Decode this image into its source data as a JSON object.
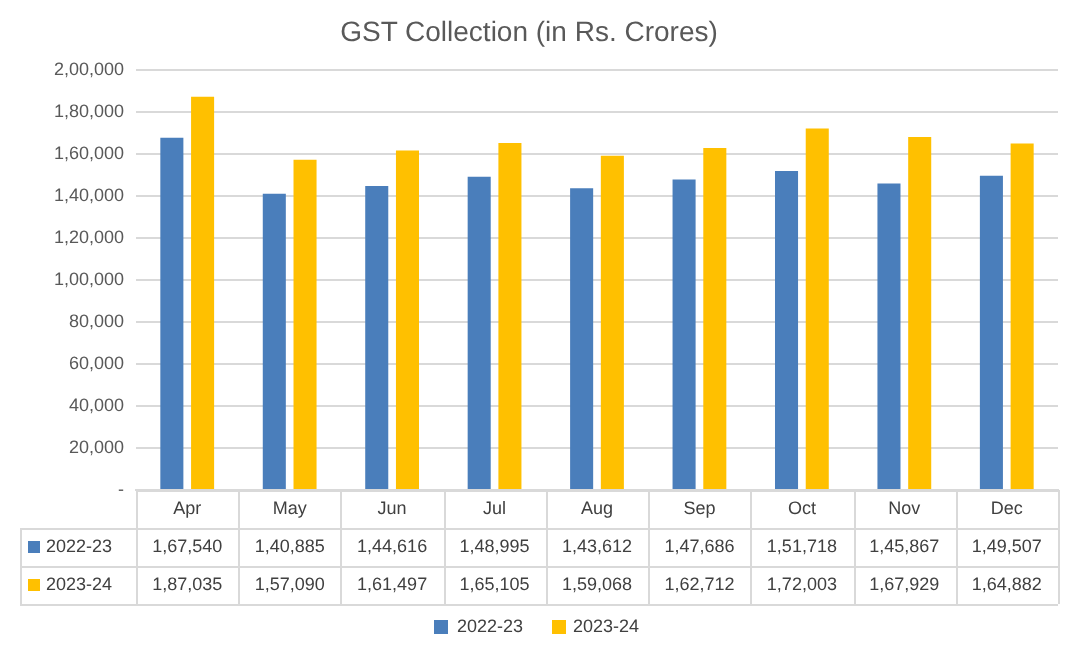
{
  "chart_data": {
    "type": "bar",
    "title": "GST Collection (in Rs. Crores)",
    "categories": [
      "Apr",
      "May",
      "Jun",
      "Jul",
      "Aug",
      "Sep",
      "Oct",
      "Nov",
      "Dec"
    ],
    "series": [
      {
        "name": "2022-23",
        "color": "#4a7ebb",
        "values": [
          167540,
          140885,
          144616,
          148995,
          143612,
          147686,
          151718,
          145867,
          149507
        ],
        "value_labels": [
          "1,67,540",
          "1,40,885",
          "1,44,616",
          "1,48,995",
          "1,43,612",
          "1,47,686",
          "1,51,718",
          "1,45,867",
          "1,49,507"
        ]
      },
      {
        "name": "2023-24",
        "color": "#ffc000",
        "values": [
          187035,
          157090,
          161497,
          165105,
          159068,
          162712,
          172003,
          167929,
          164882
        ],
        "value_labels": [
          "1,87,035",
          "1,57,090",
          "1,61,497",
          "1,65,105",
          "1,59,068",
          "1,62,712",
          "1,72,003",
          "1,67,929",
          "1,64,882"
        ]
      }
    ],
    "ylim": [
      0,
      200000
    ],
    "yticks": [
      {
        "value": 0,
        "label": "-"
      },
      {
        "value": 20000,
        "label": "20,000"
      },
      {
        "value": 40000,
        "label": "40,000"
      },
      {
        "value": 60000,
        "label": "60,000"
      },
      {
        "value": 80000,
        "label": "80,000"
      },
      {
        "value": 100000,
        "label": "1,00,000"
      },
      {
        "value": 120000,
        "label": "1,20,000"
      },
      {
        "value": 140000,
        "label": "1,40,000"
      },
      {
        "value": 160000,
        "label": "1,60,000"
      },
      {
        "value": 180000,
        "label": "1,80,000"
      },
      {
        "value": 200000,
        "label": "2,00,000"
      }
    ],
    "grid": "y",
    "legend": "bottom"
  }
}
